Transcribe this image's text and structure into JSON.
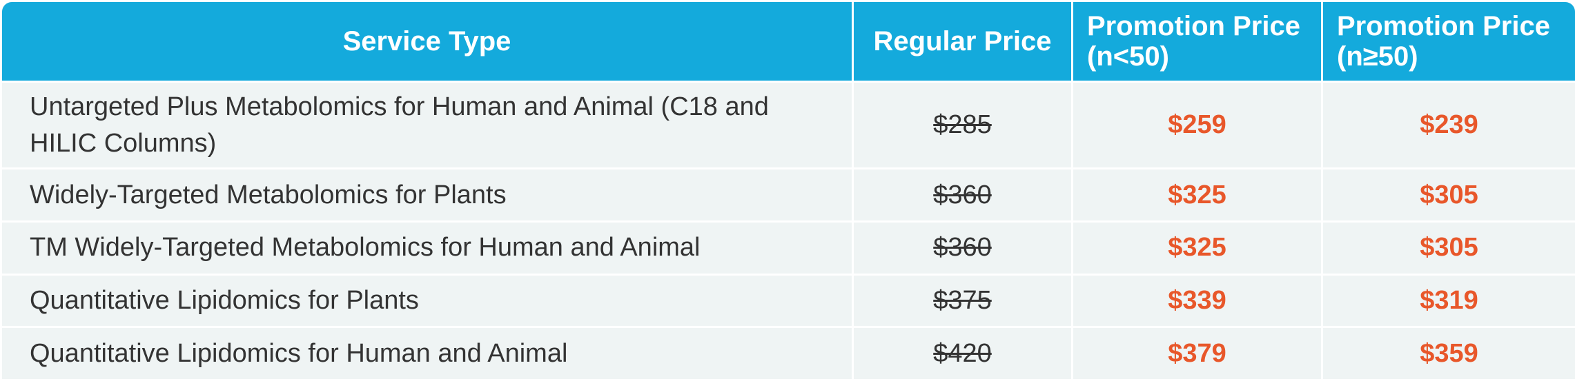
{
  "header": {
    "service_type": "Service Type",
    "regular_price": "Regular Price",
    "promo_lt50": "Promotion Price (n<50)",
    "promo_ge50": "Promotion Price (n≥50)"
  },
  "rows": [
    {
      "service": "Untargeted Plus Metabolomics for Human and Animal (C18 and HILIC Columns)",
      "regular": "$285",
      "promo_lt50": "$259",
      "promo_ge50": "$239"
    },
    {
      "service": "Widely-Targeted Metabolomics for Plants",
      "regular": "$360",
      "promo_lt50": "$325",
      "promo_ge50": "$305"
    },
    {
      "service": "TM Widely-Targeted Metabolomics for Human and Animal",
      "regular": "$360",
      "promo_lt50": "$325",
      "promo_ge50": "$305"
    },
    {
      "service": "Quantitative Lipidomics for Plants",
      "regular": "$375",
      "promo_lt50": "$339",
      "promo_ge50": "$319"
    },
    {
      "service": "Quantitative Lipidomics for Human and Animal",
      "regular": "$420",
      "promo_lt50": "$379",
      "promo_ge50": "$359"
    }
  ],
  "colors": {
    "header_bg": "#14aadc",
    "row_bg": "#eff4f4",
    "promo_text": "#e8572a"
  }
}
